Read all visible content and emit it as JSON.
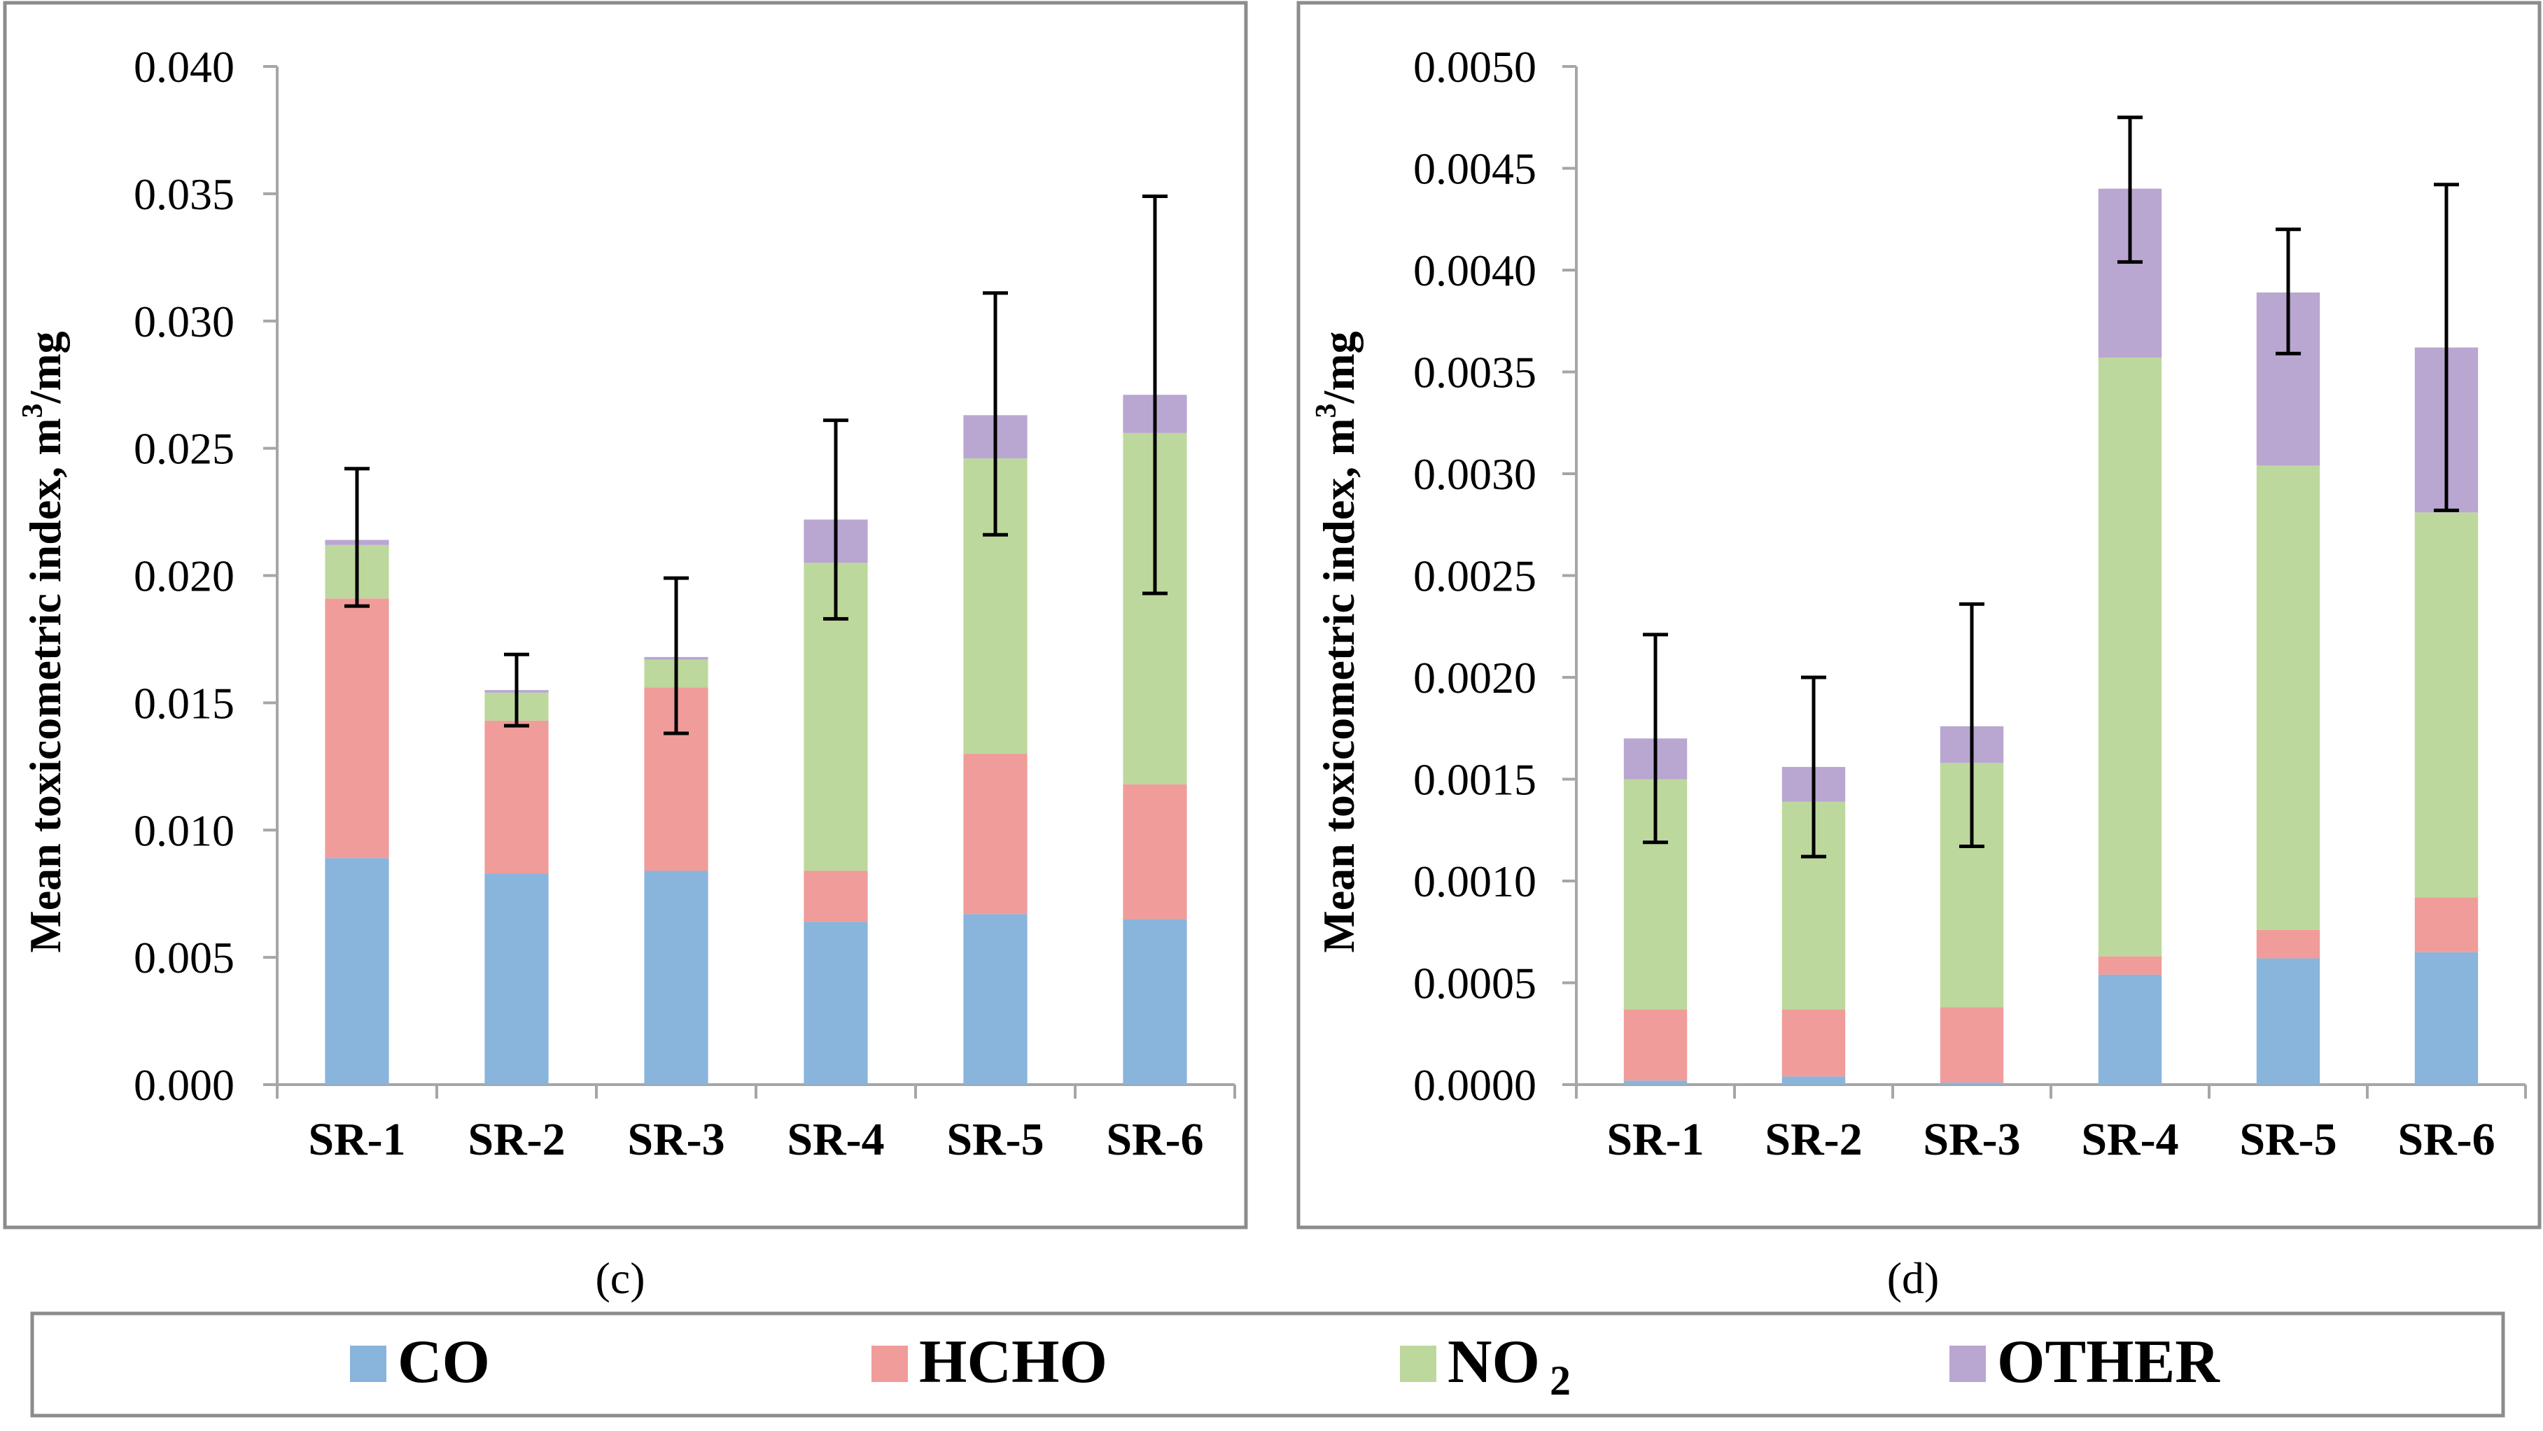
{
  "colors": {
    "CO": "#89b4db",
    "HCHO": "#f09c9a",
    "NO2": "#bdd89c",
    "OTHER": "#b9a6d1",
    "frame": "#8c8c8c",
    "axis": "#a6a6a6",
    "error": "#000000"
  },
  "chart_data": [
    {
      "type": "bar",
      "stacked": true,
      "panel_label": "(c)",
      "ylabel": "Mean toxicometric index, m³/mg",
      "ylabel_main": "Mean toxicometric index, m",
      "ylabel_sup": "3",
      "ylabel_tail": "/mg",
      "ylim": [
        0,
        0.04
      ],
      "yticks": [
        "0.000",
        "0.005",
        "0.010",
        "0.015",
        "0.020",
        "0.025",
        "0.030",
        "0.035",
        "0.040"
      ],
      "categories": [
        "SR-1",
        "SR-2",
        "SR-3",
        "SR-4",
        "SR-5",
        "SR-6"
      ],
      "series": [
        {
          "name": "CO",
          "values": [
            0.0089,
            0.0083,
            0.0084,
            0.0064,
            0.0067,
            0.0065
          ]
        },
        {
          "name": "HCHO",
          "values": [
            0.0102,
            0.006,
            0.0072,
            0.002,
            0.0063,
            0.0053
          ]
        },
        {
          "name": "NO2",
          "values": [
            0.0021,
            0.0011,
            0.0011,
            0.0121,
            0.0116,
            0.0138
          ]
        },
        {
          "name": "OTHER",
          "values": [
            0.0002,
            0.0001,
            0.0001,
            0.0017,
            0.0017,
            0.0015
          ]
        }
      ],
      "error_bars": [
        {
          "low": 0.0188,
          "high": 0.0242
        },
        {
          "low": 0.0141,
          "high": 0.0169
        },
        {
          "low": 0.0138,
          "high": 0.0199
        },
        {
          "low": 0.0183,
          "high": 0.0261
        },
        {
          "low": 0.0216,
          "high": 0.0311
        },
        {
          "low": 0.0193,
          "high": 0.0349
        }
      ]
    },
    {
      "type": "bar",
      "stacked": true,
      "panel_label": "(d)",
      "ylabel": "Mean toxicometric index, m³/mg",
      "ylabel_main": "Mean toxicometric index, m",
      "ylabel_sup": "3",
      "ylabel_tail": "/mg",
      "ylim": [
        0,
        0.005
      ],
      "yticks": [
        "0.0000",
        "0.0005",
        "0.0010",
        "0.0015",
        "0.0020",
        "0.0025",
        "0.0030",
        "0.0035",
        "0.0040",
        "0.0045",
        "0.0050"
      ],
      "categories": [
        "SR-1",
        "SR-2",
        "SR-3",
        "SR-4",
        "SR-5",
        "SR-6"
      ],
      "series": [
        {
          "name": "CO",
          "values": [
            2e-05,
            4e-05,
            1e-05,
            0.00054,
            0.00062,
            0.00065
          ]
        },
        {
          "name": "HCHO",
          "values": [
            0.00035,
            0.00033,
            0.00037,
            9e-05,
            0.00014,
            0.00027
          ]
        },
        {
          "name": "NO2",
          "values": [
            0.00113,
            0.00102,
            0.0012,
            0.00294,
            0.00228,
            0.00189
          ]
        },
        {
          "name": "OTHER",
          "values": [
            0.0002,
            0.00017,
            0.00018,
            0.00083,
            0.00085,
            0.00081
          ]
        }
      ],
      "error_bars": [
        {
          "low": 0.00119,
          "high": 0.00221
        },
        {
          "low": 0.00112,
          "high": 0.002
        },
        {
          "low": 0.00117,
          "high": 0.00236
        },
        {
          "low": 0.00404,
          "high": 0.00475
        },
        {
          "low": 0.00359,
          "high": 0.0042
        },
        {
          "low": 0.00282,
          "high": 0.00442
        }
      ]
    }
  ],
  "legend": [
    {
      "key": "CO",
      "label": "CO"
    },
    {
      "key": "HCHO",
      "label": "HCHO"
    },
    {
      "key": "NO2",
      "label": "NO",
      "sub": "2"
    },
    {
      "key": "OTHER",
      "label": "OTHER"
    }
  ]
}
